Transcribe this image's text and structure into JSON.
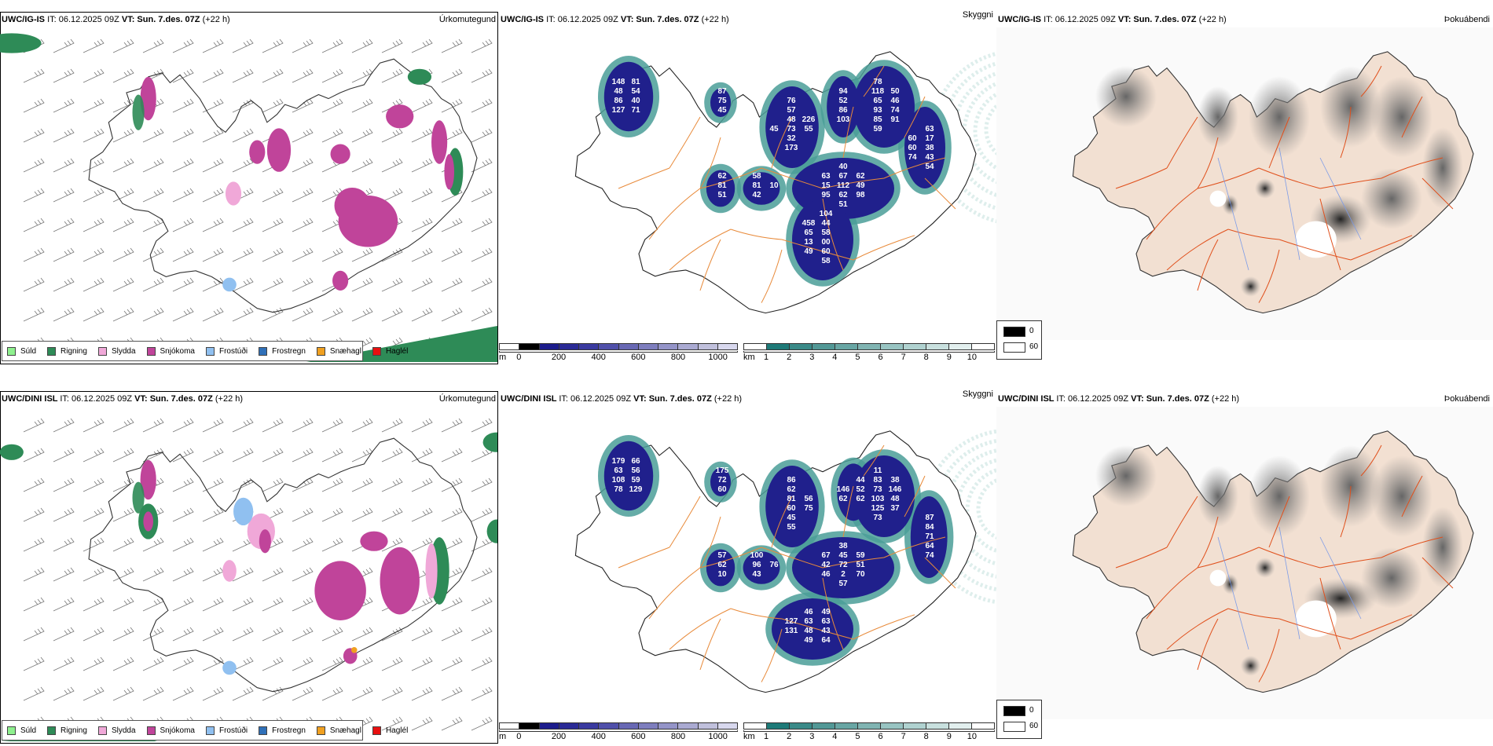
{
  "rows": [
    {
      "model": "UWC/IG-IS",
      "it_label": "IT:",
      "issue_time": "06.12.2025 09Z",
      "vt_label": "VT:",
      "valid_time": "Sun. 7.des. 07Z",
      "lead": "(+22 h)",
      "visibility_labels": [
        "112",
        "81",
        "73",
        "75",
        "52",
        "48",
        "58",
        "00",
        "86",
        "38",
        "65",
        "81",
        "93",
        "17",
        "62",
        "54",
        "40",
        "67",
        "32",
        "15",
        "49",
        "43",
        "46",
        "44",
        "60",
        "57",
        "74",
        "118",
        "48",
        "51",
        "85",
        "94",
        "86",
        "95",
        "98",
        "81",
        "63",
        "65",
        "13",
        "103",
        "63",
        "62",
        "50",
        "62",
        "42",
        "91",
        "71",
        "148",
        "87",
        "60",
        "45",
        "54",
        "173",
        "458",
        "49",
        "51",
        "58",
        "60",
        "127",
        "104",
        "58",
        "55",
        "10",
        "78",
        "226",
        "76",
        "40",
        "74",
        "59",
        "45"
      ]
    },
    {
      "model": "UWC/DINI ISL",
      "it_label": "IT:",
      "issue_time": "06.12.2025 09Z",
      "vt_label": "VT:",
      "valid_time": "Sun. 7.des. 07Z",
      "lead": "(+22 h)",
      "visibility_labels": [
        "72",
        "71",
        "62",
        "60",
        "72",
        "81",
        "48",
        "84",
        "63",
        "96",
        "73",
        "103",
        "2",
        "64",
        "56",
        "59",
        "45",
        "45",
        "42",
        "51",
        "43",
        "52",
        "146",
        "48",
        "62",
        "63",
        "63",
        "83",
        "125",
        "10",
        "108",
        "87",
        "49",
        "46",
        "70",
        "66",
        "62",
        "67",
        "59",
        "46",
        "57",
        "38",
        "37",
        "44",
        "43",
        "74",
        "129",
        "179",
        "146",
        "64",
        "175",
        "131",
        "127",
        "60",
        "55",
        "57",
        "100",
        "49",
        "78",
        "75",
        "76",
        "56",
        "62",
        "86",
        "11",
        "73",
        "38"
      ]
    }
  ],
  "panels": {
    "precip_type": {
      "name": "Úrkomutegund",
      "legend": [
        {
          "label": "Súld",
          "color": "#8ef08e"
        },
        {
          "label": "Rigning",
          "color": "#2e8b57"
        },
        {
          "label": "Slydda",
          "color": "#f0a8d8"
        },
        {
          "label": "Snjókoma",
          "color": "#c0449a"
        },
        {
          "label": "Frostúði",
          "color": "#90c0f0"
        },
        {
          "label": "Frostregn",
          "color": "#3070b8"
        },
        {
          "label": "Snæhagl",
          "color": "#f0a020"
        },
        {
          "label": "Haglél",
          "color": "#e81010"
        }
      ]
    },
    "visibility": {
      "name": "Skyggni",
      "m_scale": {
        "unit": "m",
        "ticks": [
          "0",
          "200",
          "400",
          "600",
          "800",
          "1000"
        ],
        "colors": [
          "#ffffff",
          "#000000",
          "#1c1c8c",
          "#2a2a96",
          "#3a3aa0",
          "#5050aa",
          "#6868b4",
          "#7e7ebe",
          "#9494c8",
          "#aaaad2",
          "#c0c0dc",
          "#d8d8ee"
        ]
      },
      "km_scale": {
        "unit": "km",
        "ticks": [
          "1",
          "2",
          "3",
          "4",
          "5",
          "6",
          "7",
          "8",
          "9",
          "10"
        ],
        "colors": [
          "#ffffff",
          "#1e7a78",
          "#3a8a88",
          "#529896",
          "#68a6a4",
          "#80b4b2",
          "#98c4c2",
          "#b0d2d0",
          "#c8e0de",
          "#e2efee",
          "#ffffff"
        ]
      }
    },
    "fog": {
      "name": "Þokuábendi",
      "legend": [
        {
          "label": "0",
          "color": "#000000"
        },
        {
          "label": "60",
          "color": "#ffffff"
        }
      ]
    }
  },
  "colors": {
    "land_fog": "#f2e0d2",
    "roads": "#e0501c",
    "roads_vis": "#e88a3a",
    "rivers": "#7a9ae8",
    "vis_low": "#20208c",
    "vis_teal": "#4a9e98"
  }
}
